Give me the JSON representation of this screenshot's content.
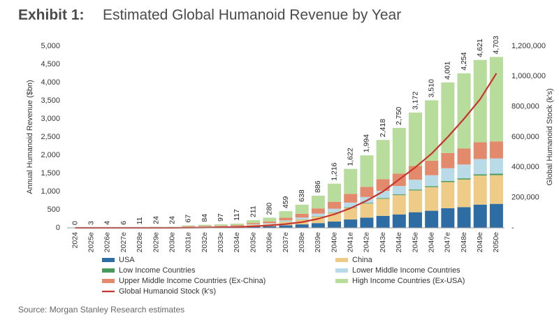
{
  "header": {
    "exhibit": "Exhibit 1:",
    "title": "Estimated Global Humanoid Revenue by Year"
  },
  "source": "Source: Morgan Stanley Research estimates",
  "chart_data": {
    "type": "bar",
    "stacked": true,
    "title": "Estimated Global Humanoid Revenue by Year",
    "ylabel": "Annual Humanoid Revenue ($bn)",
    "y2label": "Global Humanoid Stock (k's)",
    "ylim": [
      0,
      5000
    ],
    "y2lim": [
      0,
      1200000
    ],
    "yticks": [
      "5,000",
      "4,500",
      "4,000",
      "3,500",
      "3,000",
      "2,500",
      "2,000",
      "1,500",
      "1,000",
      "500",
      "0"
    ],
    "y2ticks": [
      "1,200,000",
      "1,000,000",
      "800,000",
      "600,000",
      "400,000",
      "200,000",
      "-"
    ],
    "categories": [
      "2024",
      "2025e",
      "2026e",
      "2027e",
      "2028e",
      "2029e",
      "2030e",
      "2031e",
      "2032e",
      "2033e",
      "2034e",
      "2035e",
      "2036e",
      "2037e",
      "2038e",
      "2039e",
      "2040e",
      "2041e",
      "2042e",
      "2043e",
      "2044e",
      "2045e",
      "2046e",
      "2047e",
      "2048e",
      "2049e",
      "2050e"
    ],
    "totals": [
      0,
      3,
      4,
      6,
      11,
      24,
      24,
      67,
      84,
      97,
      117,
      211,
      280,
      459,
      638,
      886,
      1216,
      1622,
      1994,
      2418,
      2750,
      3172,
      3510,
      4001,
      4254,
      4621,
      4703
    ],
    "total_labels": [
      "0",
      "3",
      "4",
      "6",
      "11",
      "24",
      "24",
      "67",
      "84",
      "97",
      "117",
      "211",
      "280",
      "459",
      "638",
      "886",
      "1,216",
      "1,622",
      "1,994",
      "2,418",
      "2,750",
      "3,172",
      "3,510",
      "4,001",
      "4,254",
      "4,621",
      "4,703"
    ],
    "series": [
      {
        "name": "USA",
        "color": "#2e6da4",
        "values": [
          0,
          0,
          1,
          1,
          2,
          5,
          5,
          12,
          15,
          18,
          20,
          35,
          45,
          70,
          95,
          130,
          175,
          230,
          280,
          330,
          370,
          430,
          470,
          540,
          570,
          640,
          660
        ]
      },
      {
        "name": "China",
        "color": "#eecb87",
        "values": [
          0,
          1,
          1,
          2,
          3,
          6,
          6,
          16,
          20,
          22,
          26,
          45,
          60,
          95,
          130,
          180,
          240,
          320,
          390,
          470,
          530,
          600,
          650,
          720,
          760,
          800,
          790
        ]
      },
      {
        "name": "Low Income Countries",
        "color": "#4a9a5c",
        "values": [
          0,
          0,
          0,
          0,
          0,
          0,
          0,
          1,
          1,
          1,
          1,
          2,
          3,
          5,
          7,
          10,
          12,
          15,
          18,
          20,
          22,
          25,
          28,
          30,
          33,
          35,
          40
        ]
      },
      {
        "name": "Lower Middle Income Countries",
        "color": "#b9dbe8",
        "values": [
          0,
          0,
          0,
          0,
          1,
          2,
          2,
          5,
          6,
          7,
          9,
          16,
          22,
          35,
          50,
          70,
          100,
          130,
          160,
          200,
          230,
          270,
          300,
          350,
          380,
          420,
          420
        ]
      },
      {
        "name": "Upper Middle Income Countries (Ex-China)",
        "color": "#e48a6c",
        "values": [
          0,
          1,
          1,
          1,
          2,
          4,
          4,
          11,
          14,
          16,
          20,
          35,
          47,
          75,
          105,
          145,
          190,
          240,
          280,
          320,
          340,
          380,
          400,
          420,
          440,
          460,
          470
        ]
      },
      {
        "name": "High Income Countries (Ex-USA)",
        "color": "#b8dc9b",
        "values": [
          0,
          1,
          1,
          2,
          3,
          7,
          7,
          22,
          28,
          33,
          41,
          78,
          103,
          179,
          251,
          351,
          499,
          687,
          866,
          1078,
          1258,
          1467,
          1662,
          1941,
          2071,
          2266,
          2323
        ]
      }
    ],
    "line": {
      "name": "Global Humanoid Stock (k's)",
      "color": "#c6362d",
      "axis": "right",
      "values": [
        0,
        0,
        0,
        0,
        0,
        0,
        0,
        1000,
        2000,
        4000,
        6000,
        10000,
        16000,
        25000,
        38000,
        60000,
        90000,
        130000,
        180000,
        240000,
        320000,
        400000,
        490000,
        600000,
        720000,
        850000,
        1020000
      ]
    },
    "legend": {
      "placement": "bottom",
      "items": [
        {
          "label": "USA",
          "color": "#2e6da4",
          "kind": "bar"
        },
        {
          "label": "China",
          "color": "#eecb87",
          "kind": "bar"
        },
        {
          "label": "Low Income Countries",
          "color": "#4a9a5c",
          "kind": "bar"
        },
        {
          "label": "Lower Middle Income Countries",
          "color": "#b9dbe8",
          "kind": "bar"
        },
        {
          "label": "Upper Middle Income Countries (Ex-China)",
          "color": "#e48a6c",
          "kind": "bar"
        },
        {
          "label": "High Income Countries (Ex-USA)",
          "color": "#b8dc9b",
          "kind": "bar"
        },
        {
          "label": "Global Humanoid Stock (k's)",
          "color": "#c6362d",
          "kind": "line"
        }
      ]
    },
    "grid": false
  }
}
